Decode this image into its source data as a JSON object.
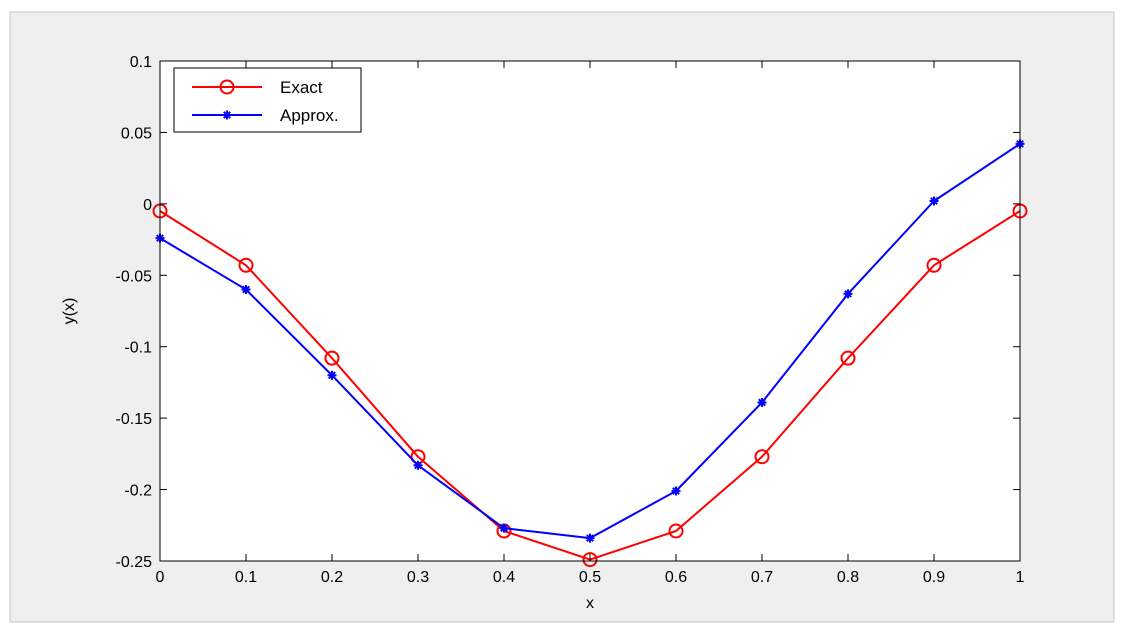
{
  "chart_data": {
    "type": "line",
    "title": "",
    "xlabel": "x",
    "ylabel": "y(x)",
    "xlim": [
      0,
      1
    ],
    "ylim": [
      -0.25,
      0.1
    ],
    "x_ticks": [
      0,
      0.1,
      0.2,
      0.3,
      0.4,
      0.5,
      0.6,
      0.7,
      0.8,
      0.9,
      1
    ],
    "x_tick_labels": [
      "0",
      "0.1",
      "0.2",
      "0.3",
      "0.4",
      "0.5",
      "0.6",
      "0.7",
      "0.8",
      "0.9",
      "1"
    ],
    "y_ticks": [
      -0.25,
      -0.2,
      -0.15,
      -0.1,
      -0.05,
      0,
      0.05,
      0.1
    ],
    "y_tick_labels": [
      "-0.25",
      "-0.2",
      "-0.15",
      "-0.1",
      "-0.05",
      "0",
      "0.05",
      "0.1"
    ],
    "grid": false,
    "legend_position": "top-left",
    "x": [
      0,
      0.1,
      0.2,
      0.3,
      0.4,
      0.5,
      0.6,
      0.7,
      0.8,
      0.9,
      1
    ],
    "series": [
      {
        "name": "Exact",
        "color": "#ff0000",
        "marker": "circle",
        "values": [
          -0.005,
          -0.043,
          -0.108,
          -0.177,
          -0.229,
          -0.249,
          -0.229,
          -0.177,
          -0.108,
          -0.043,
          -0.005
        ]
      },
      {
        "name": "Approx.",
        "color": "#0000ff",
        "marker": "star",
        "values": [
          -0.024,
          -0.06,
          -0.12,
          -0.183,
          -0.227,
          -0.234,
          -0.201,
          -0.139,
          -0.063,
          0.002,
          0.042
        ]
      }
    ]
  },
  "colors": {
    "figure_background": "#efefef",
    "axes_background": "#ffffff",
    "axes_color": "#000000"
  }
}
